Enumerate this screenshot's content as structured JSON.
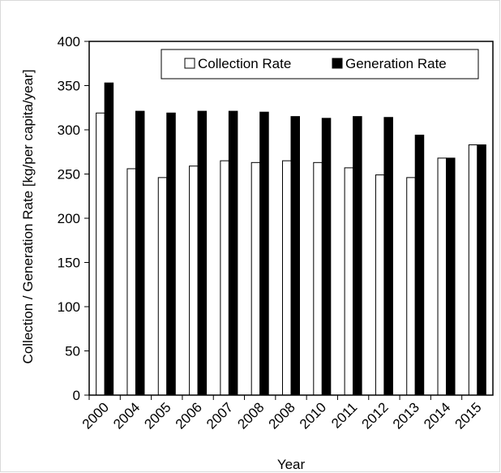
{
  "chart_data": {
    "type": "bar",
    "categories": [
      "2000",
      "2004",
      "2005",
      "2006",
      "2007",
      "2008",
      "2008",
      "2010",
      "2011",
      "2012",
      "2013",
      "2014",
      "2015"
    ],
    "series": [
      {
        "name": "Collection Rate",
        "color": "#ffffff",
        "values": [
          319,
          256,
          246,
          259,
          265,
          263,
          265,
          263,
          257,
          249,
          246,
          268,
          283
        ]
      },
      {
        "name": "Generation Rate",
        "color": "#000000",
        "values": [
          353,
          321,
          319,
          321,
          321,
          320,
          315,
          313,
          315,
          314,
          294,
          268,
          283
        ]
      }
    ],
    "xlabel": "Year",
    "ylabel": "Collection / Generation Rate [kg/per capita/year]",
    "ylim": [
      0,
      400
    ],
    "yticks": [
      0,
      50,
      100,
      150,
      200,
      250,
      300,
      350,
      400
    ],
    "grid": false,
    "legend_position": "top"
  }
}
